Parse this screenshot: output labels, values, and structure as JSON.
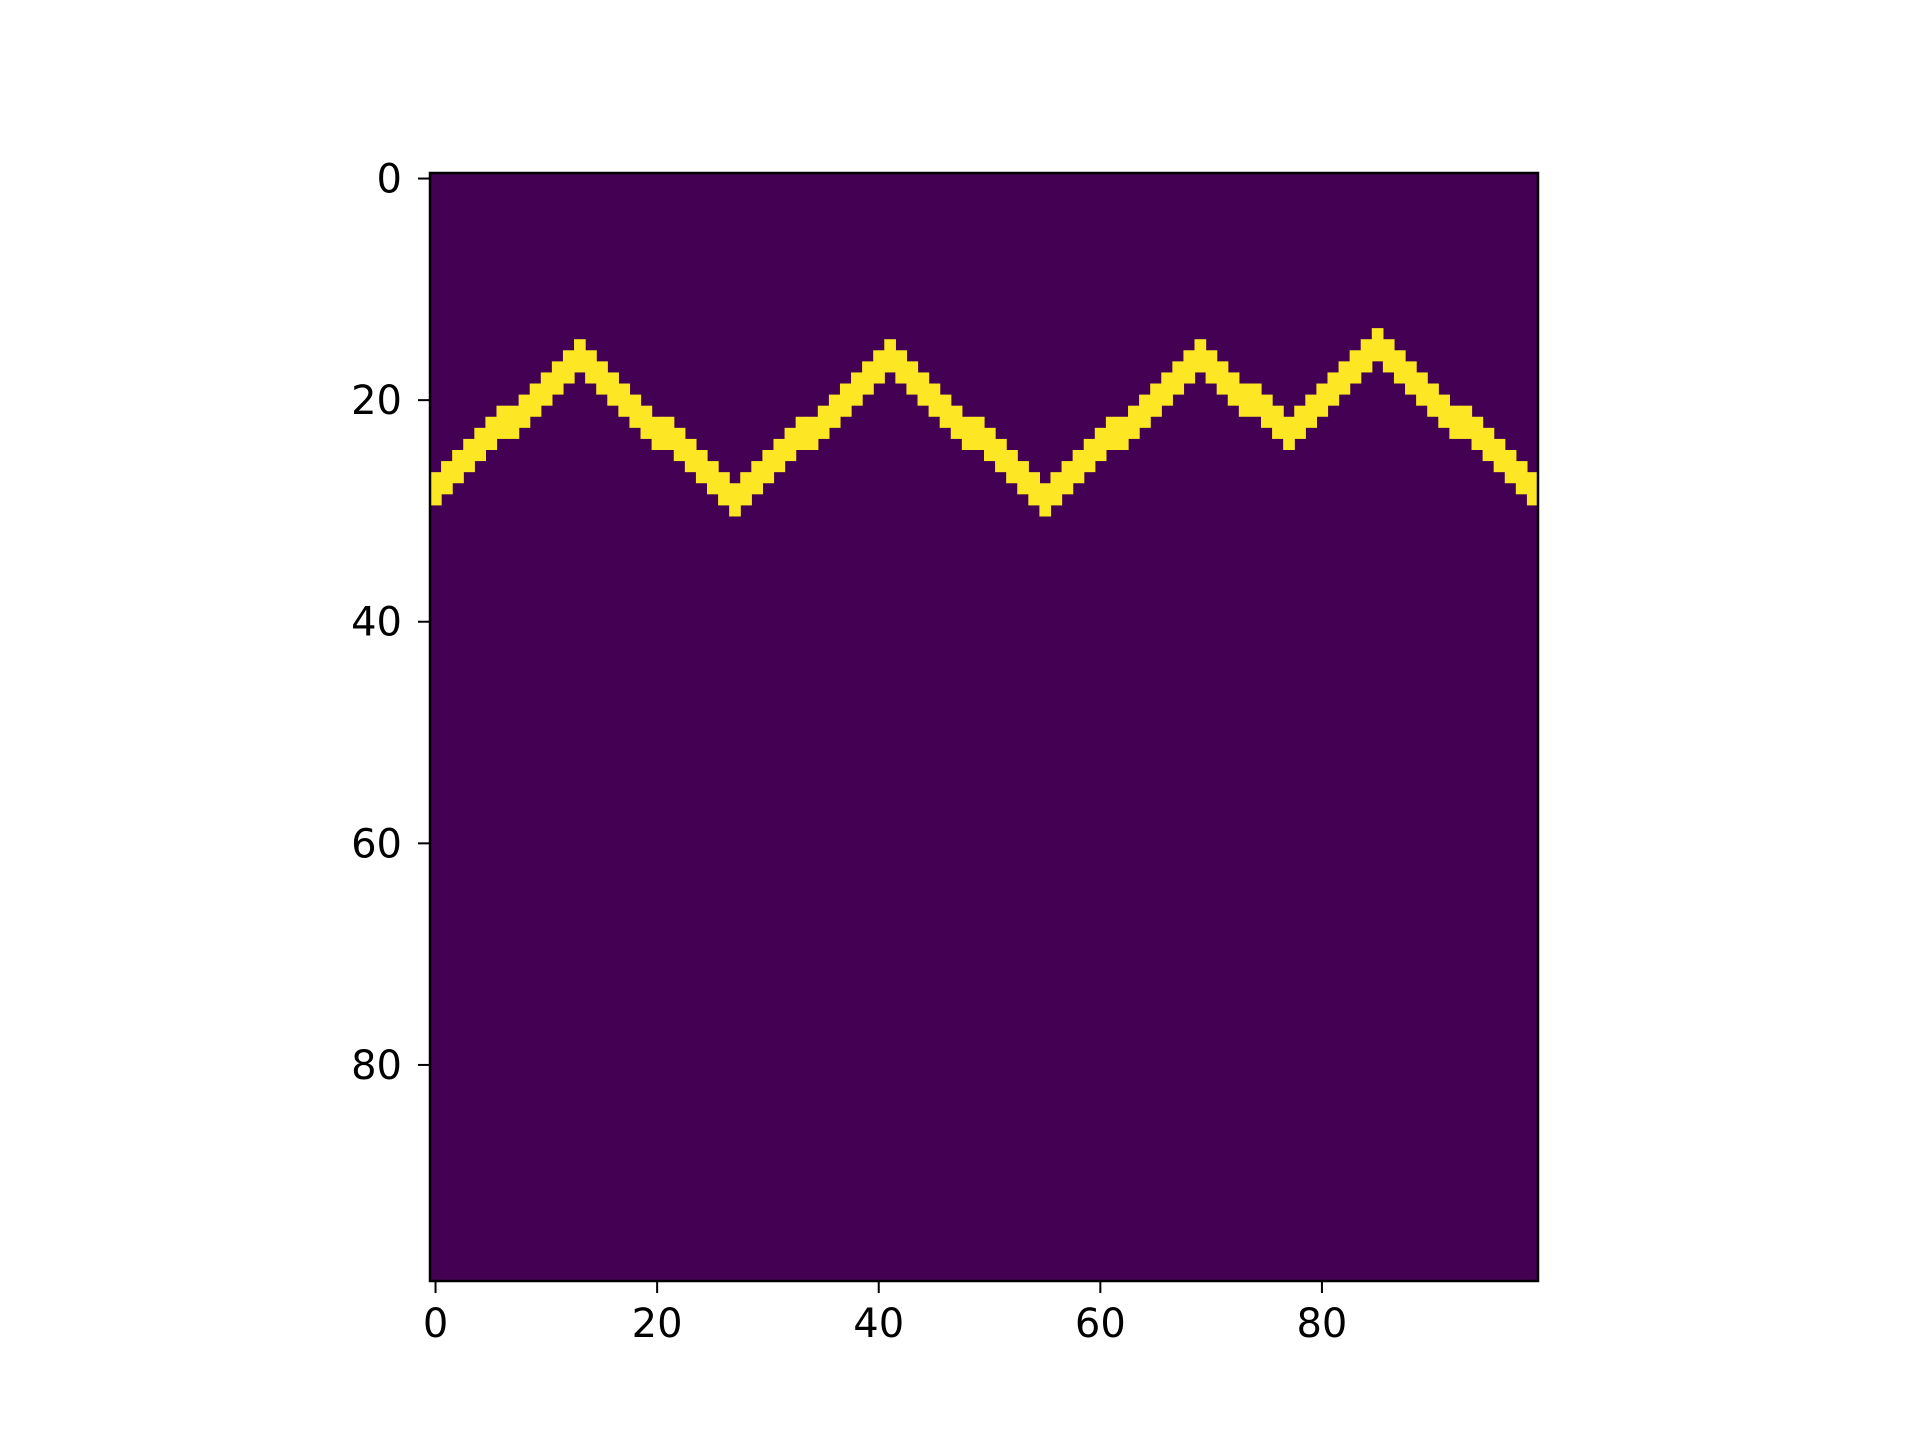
{
  "chart_data": {
    "type": "heatmap",
    "title": "",
    "xlabel": "",
    "ylabel": "",
    "grid_size": [
      100,
      100
    ],
    "xlim": [
      -0.5,
      99.5
    ],
    "ylim": [
      99.5,
      -0.5
    ],
    "y_axis_inverted": true,
    "colormap": "viridis",
    "value_range": [
      0,
      1
    ],
    "background_value": 0,
    "line_value": 1,
    "line_thickness_cells": 3,
    "line_rows_by_column_vertices": [
      [
        0,
        28
      ],
      [
        13,
        16
      ],
      [
        27,
        29
      ],
      [
        41,
        16
      ],
      [
        55,
        29
      ],
      [
        69,
        16
      ],
      [
        77,
        23
      ],
      [
        85,
        15
      ],
      [
        99,
        28
      ]
    ],
    "x_ticks": [
      0,
      20,
      40,
      60,
      80
    ],
    "y_ticks": [
      0,
      20,
      40,
      60,
      80
    ],
    "x_tick_labels": [
      "0",
      "20",
      "40",
      "60",
      "80"
    ],
    "y_tick_labels": [
      "0",
      "20",
      "40",
      "60",
      "80"
    ],
    "grid": false,
    "colors": {
      "low": "#440154",
      "high": "#fde725"
    }
  }
}
